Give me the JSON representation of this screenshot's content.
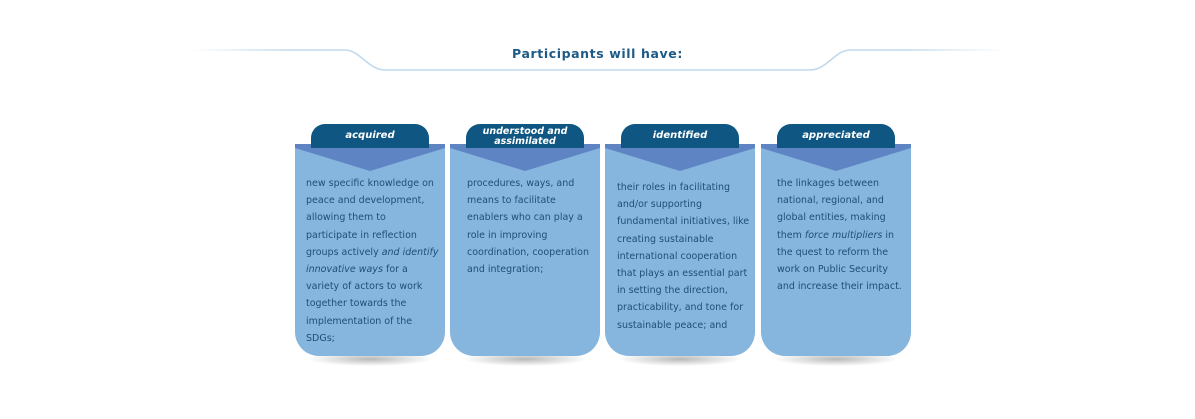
{
  "header": {
    "title": "Participants will have:"
  },
  "colors": {
    "tab": "#0f5782",
    "card_body": "#86b6de",
    "chevron": "#5f84c4",
    "text": "#1f4d78",
    "title": "#1e5a86",
    "rule": "#b9d5ea"
  },
  "cards": [
    {
      "label": "acquired",
      "text_before": "new specific knowledge on peace and development, allowing them to participate in reflection groups actively ",
      "text_italic": "and identify innovative ways",
      "text_after": " for a variety of actors to work together towards the implementation of the SDGs;"
    },
    {
      "label": "understood and assimilated",
      "text_before": "procedures, ways, and means to facilitate enablers who can play a role in improving coordination, cooperation and integration;",
      "text_italic": "",
      "text_after": ""
    },
    {
      "label": "identified",
      "text_before": "their roles in facilitating and/or supporting fundamental initiatives, like creating sustainable international cooperation that plays an essential part in setting the direction, practicability, and tone for sustainable peace; and",
      "text_italic": "",
      "text_after": ""
    },
    {
      "label": "appreciated",
      "text_before": "the linkages between national, regional, and global entities, making them ",
      "text_italic": "force multipliers",
      "text_after": " in the quest to reform the work on Public Security and increase their impact."
    }
  ]
}
